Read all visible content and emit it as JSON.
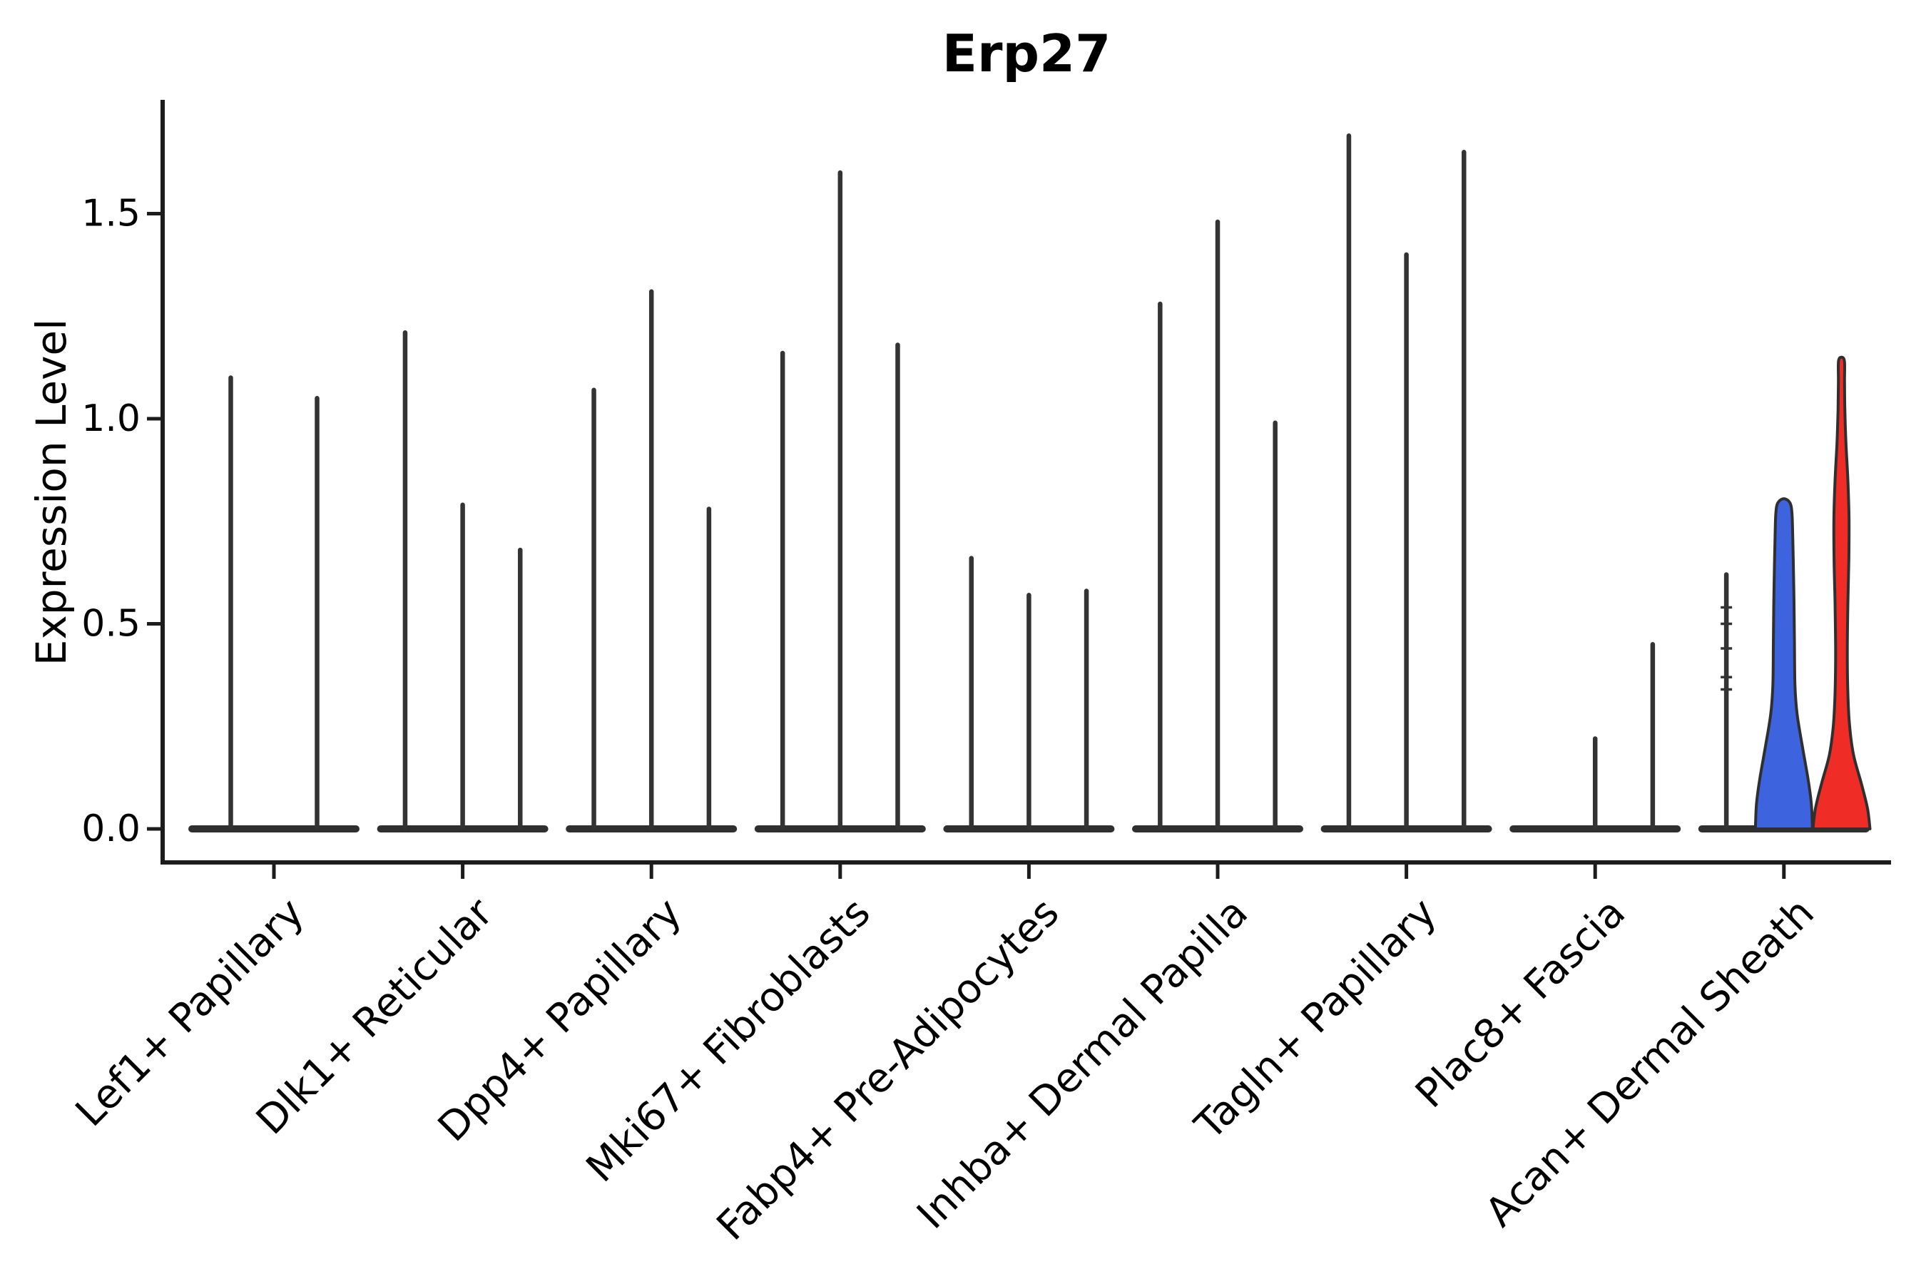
{
  "figure": {
    "title": "Erp27",
    "ylabel": "Expression Level"
  },
  "chart_data": {
    "type": "violin",
    "title": "Erp27",
    "xlabel": "",
    "ylabel": "Expression Level",
    "yticks": [
      0.0,
      0.5,
      1.0,
      1.5
    ],
    "ytick_labels": [
      "0.0",
      "0.5",
      "1.0",
      "1.5"
    ],
    "ylim_display": [
      -0.08,
      1.78
    ],
    "grid": false,
    "legend": "none",
    "categories": [
      "Lef1+ Papillary",
      "Dlk1+ Reticular",
      "Dpp4+ Papillary",
      "Mki67+ Fibroblasts",
      "Fabp4+ Pre-Adipocytes",
      "Inhba+ Dermal Papilla",
      "Tagln+ Papillary",
      "Plac8+ Fascia",
      "Acan+ Dermal Sheath"
    ],
    "colors": {
      "edge": "#2F2F2F",
      "spike": "#333333",
      "axis": "#1c1c1c",
      "text": "#000000",
      "highlight_blue": "#3E63DF",
      "highlight_red": "#EF2C25",
      "default_fill": "#ffffff"
    },
    "groups": [
      {
        "category": "Lef1+ Papillary",
        "violins": [
          {
            "max_expression": 1.1,
            "fill": "white"
          },
          {
            "max_expression": 1.05,
            "fill": "white"
          }
        ]
      },
      {
        "category": "Dlk1+ Reticular",
        "violins": [
          {
            "max_expression": 1.21,
            "fill": "white"
          },
          {
            "max_expression": 0.79,
            "fill": "white"
          },
          {
            "max_expression": 0.68,
            "fill": "white"
          }
        ]
      },
      {
        "category": "Dpp4+ Papillary",
        "violins": [
          {
            "max_expression": 1.07,
            "fill": "white"
          },
          {
            "max_expression": 1.31,
            "fill": "white"
          },
          {
            "max_expression": 0.78,
            "fill": "white"
          }
        ]
      },
      {
        "category": "Mki67+ Fibroblasts",
        "violins": [
          {
            "max_expression": 1.16,
            "fill": "white"
          },
          {
            "max_expression": 1.6,
            "fill": "white"
          },
          {
            "max_expression": 1.18,
            "fill": "white"
          }
        ]
      },
      {
        "category": "Fabp4+ Pre-Adipocytes",
        "violins": [
          {
            "max_expression": 0.66,
            "fill": "white"
          },
          {
            "max_expression": 0.57,
            "fill": "white"
          },
          {
            "max_expression": 0.58,
            "fill": "white"
          }
        ]
      },
      {
        "category": "Inhba+ Dermal Papilla",
        "violins": [
          {
            "max_expression": 1.28,
            "fill": "white"
          },
          {
            "max_expression": 1.48,
            "fill": "white"
          },
          {
            "max_expression": 0.99,
            "fill": "white"
          }
        ]
      },
      {
        "category": "Tagln+ Papillary",
        "violins": [
          {
            "max_expression": 1.69,
            "fill": "white"
          },
          {
            "max_expression": 1.4,
            "fill": "white"
          },
          {
            "max_expression": 1.65,
            "fill": "white"
          }
        ]
      },
      {
        "category": "Plac8+ Fascia",
        "violins": [
          {
            "max_expression": 0.0,
            "fill": "white"
          },
          {
            "max_expression": 0.22,
            "fill": "white"
          },
          {
            "max_expression": 0.45,
            "fill": "white"
          }
        ]
      },
      {
        "category": "Acan+ Dermal Sheath",
        "violins": [
          {
            "max_expression": 0.62,
            "fill": "white",
            "nubs": [
              0.34,
              0.37,
              0.44,
              0.5,
              0.54
            ]
          },
          {
            "max_expression": 0.805,
            "fill": "highlight_blue",
            "shape_profile": [
              [
                0,
                40
              ],
              [
                0.06,
                38.5
              ],
              [
                0.12,
                34
              ],
              [
                0.2,
                26
              ],
              [
                0.28,
                18.5
              ],
              [
                0.35,
                15.5
              ],
              [
                0.45,
                14.8
              ],
              [
                0.55,
                14.2
              ],
              [
                0.65,
                13.2
              ],
              [
                0.72,
                12.3
              ],
              [
                0.77,
                11.3
              ],
              [
                0.795,
                8.5
              ],
              [
                0.805,
                0
              ]
            ]
          },
          {
            "max_expression": 1.15,
            "fill": "highlight_red",
            "shape_profile": [
              [
                0,
                40
              ],
              [
                0.05,
                36.5
              ],
              [
                0.11,
                28
              ],
              [
                0.18,
                17
              ],
              [
                0.25,
                11.5
              ],
              [
                0.33,
                9
              ],
              [
                0.43,
                8.2
              ],
              [
                0.55,
                9
              ],
              [
                0.66,
                10.4
              ],
              [
                0.76,
                10.6
              ],
              [
                0.85,
                9
              ],
              [
                0.94,
                6.3
              ],
              [
                1.02,
                4.8
              ],
              [
                1.09,
                4.3
              ],
              [
                1.14,
                4.2
              ],
              [
                1.15,
                0
              ]
            ]
          }
        ]
      }
    ]
  }
}
